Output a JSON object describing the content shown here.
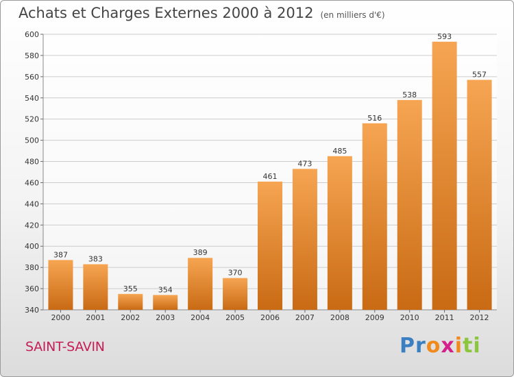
{
  "header": {
    "title": "Achats et Charges Externes 2000 à 2012",
    "unit": "(en milliers d'€)"
  },
  "footer": {
    "location": "SAINT-SAVIN",
    "brand": "Proxiti"
  },
  "colors": {
    "bar_top": "#f6a552",
    "bar_bottom": "#c96a14",
    "grid": "#cccccc"
  },
  "chart_data": {
    "type": "bar",
    "title": "Achats et Charges Externes 2000 à 2012",
    "subtitle": "(en milliers d'€)",
    "xlabel": "",
    "ylabel": "",
    "categories": [
      "2000",
      "2001",
      "2002",
      "2003",
      "2004",
      "2005",
      "2006",
      "2007",
      "2008",
      "2009",
      "2010",
      "2011",
      "2012"
    ],
    "values": [
      387,
      383,
      355,
      354,
      389,
      370,
      461,
      473,
      485,
      516,
      538,
      593,
      557
    ],
    "ylim": [
      340,
      600
    ],
    "yticks": [
      340,
      360,
      380,
      400,
      420,
      440,
      460,
      480,
      500,
      520,
      540,
      560,
      580,
      600
    ],
    "grid": true,
    "data_labels": true
  }
}
